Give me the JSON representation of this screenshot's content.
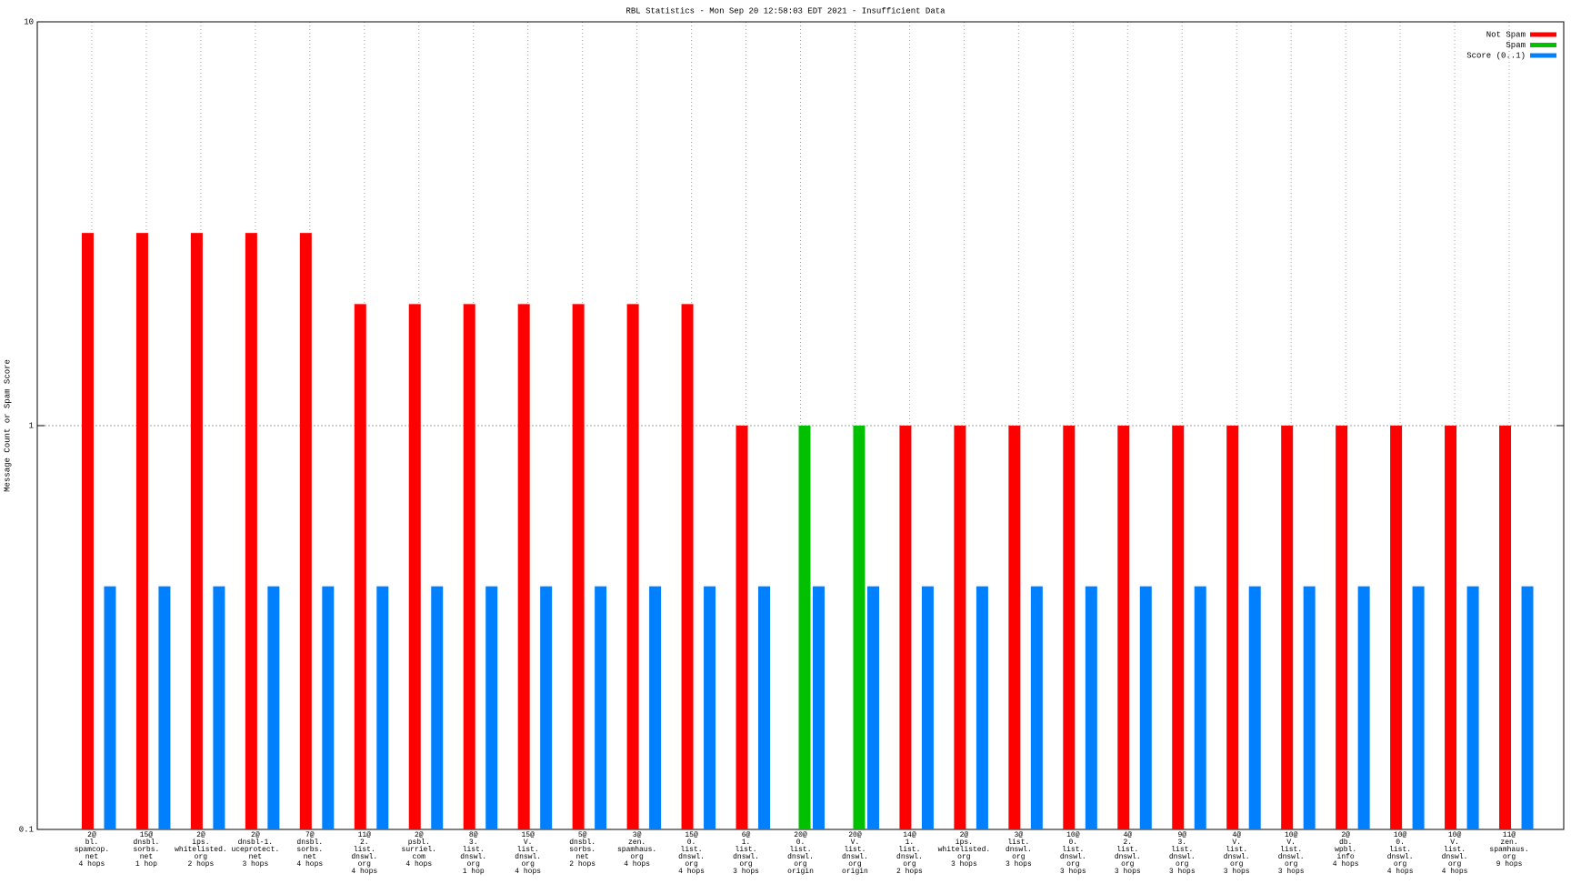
{
  "chart_data": {
    "type": "bar",
    "title": "RBL Statistics - Mon Sep 20 12:58:03 EDT 2021 - Insufficient Data",
    "y_label": "Message Count or Spam Score",
    "categories": [
      "2@\nbl.\nspamcop.\nnet\n4 hops",
      "15@\ndnsbl.\nsorbs.\nnet\n1 hop",
      "2@\nips.\nwhitelisted.\norg\n2 hops",
      "2@\ndnsbl-1.\nuceprotect.\nnet\n3 hops",
      "7@\ndnsbl.\nsorbs.\nnet\n4 hops",
      "11@\n2.\nlist.\ndnswl.\norg\n4 hops",
      "2@\npsbl.\nsurriel.\ncom\n4 hops",
      "8@\n3.\nlist.\ndnswl.\norg\n1 hop",
      "15@\nV.\nlist.\ndnswl.\norg\n4 hops",
      "5@\ndnsbl.\nsorbs.\nnet\n2 hops",
      "3@\nzen.\nspamhaus.\norg\n4 hops",
      "15@\n0.\nlist.\ndnswl.\norg\n4 hops",
      "6@\n1.\nlist.\ndnswl.\norg\n3 hops",
      "20@\n0.\nlist.\ndnswl.\norg\norigin",
      "20@\nV.\nlist.\ndnswl.\norg\norigin",
      "14@\n1.\nlist.\ndnswl.\norg\n2 hops",
      "2@\nips.\nwhitelisted.\norg\n3 hops",
      "3@\nlist.\ndnswl.\norg\n3 hops",
      "10@\n0.\nlist.\ndnswl.\norg\n3 hops",
      "4@\n2.\nlist.\ndnswl.\norg\n3 hops",
      "9@\n3.\nlist.\ndnswl.\norg\n3 hops",
      "4@\nV.\nlist.\ndnswl.\norg\n3 hops",
      "10@\nV.\nlist.\ndnswl.\norg\n3 hops",
      "2@\ndb.\nwpbl.\ninfo\n4 hops",
      "10@\n0.\nlist.\ndnswl.\norg\n4 hops",
      "10@\nV.\nlist.\ndnswl.\norg\n4 hops",
      "11@\nzen.\nspamhaus.\norg\n9 hops"
    ],
    "series": [
      {
        "name": "Not Spam",
        "color": "#ff0000",
        "values": [
          3,
          3,
          3,
          3,
          3,
          2,
          2,
          2,
          2,
          2,
          2,
          2,
          1,
          null,
          null,
          1,
          1,
          1,
          1,
          1,
          1,
          1,
          1,
          1,
          1,
          1,
          1
        ]
      },
      {
        "name": "Spam",
        "color": "#00c000",
        "values": [
          null,
          null,
          null,
          null,
          null,
          null,
          null,
          null,
          null,
          null,
          null,
          null,
          null,
          1,
          1,
          null,
          null,
          null,
          null,
          null,
          null,
          null,
          null,
          null,
          null,
          null,
          null
        ]
      },
      {
        "name": "Score (0..1)",
        "color": "#0080ff",
        "values": [
          0.4,
          0.4,
          0.4,
          0.4,
          0.4,
          0.4,
          0.4,
          0.4,
          0.4,
          0.4,
          0.4,
          0.4,
          0.4,
          0.4,
          0.4,
          0.4,
          0.4,
          0.4,
          0.4,
          0.4,
          0.4,
          0.4,
          0.4,
          0.4,
          0.4,
          0.4,
          0.4
        ]
      }
    ],
    "ylim": [
      0.1,
      10
    ],
    "yticks": [
      0.1,
      1,
      10
    ],
    "ylog": true,
    "grid": true,
    "legend": "top-right"
  }
}
